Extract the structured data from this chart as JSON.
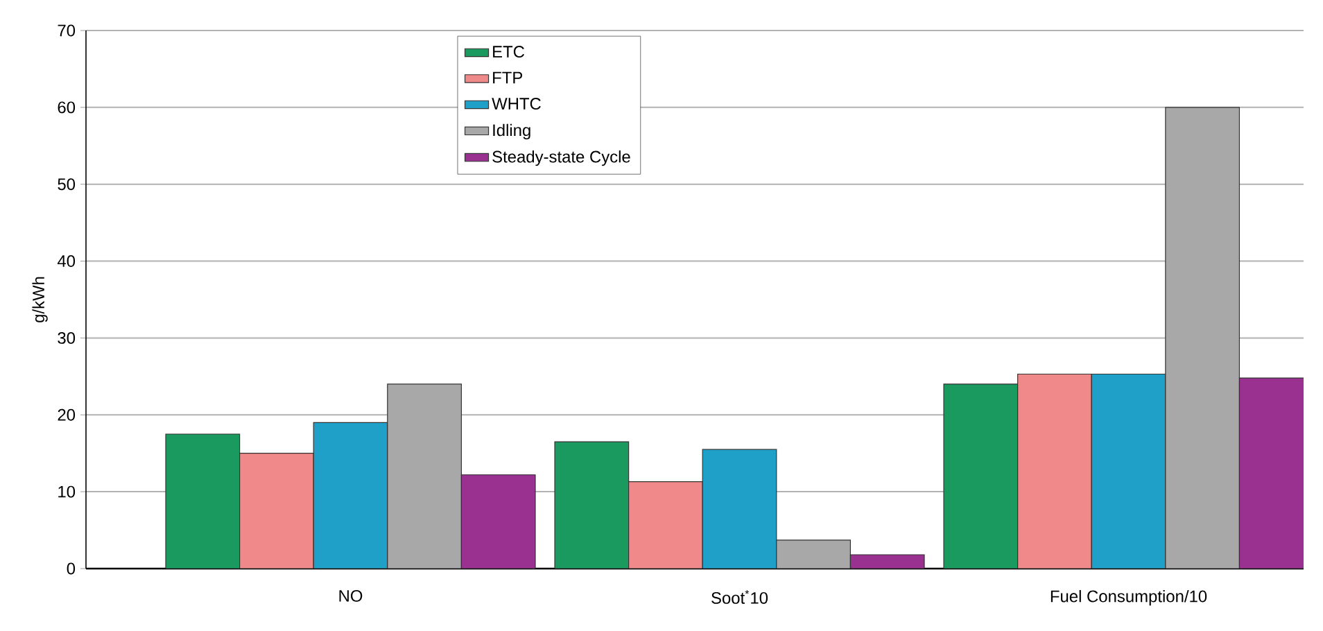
{
  "chart_data": {
    "type": "bar",
    "ylabel": "g/kWh",
    "categories": [
      "NO",
      "Soot$^{*}$10",
      "Fuel Consumption/10"
    ],
    "series": [
      {
        "name": "ETC",
        "color": "#1a9a5e",
        "values": [
          17.5,
          16.5,
          24
        ]
      },
      {
        "name": "FTP",
        "color": "#f08a8a",
        "values": [
          15,
          11.3,
          25.3
        ]
      },
      {
        "name": "WHTC",
        "color": "#1fa0c8",
        "values": [
          19,
          15.5,
          25.3
        ]
      },
      {
        "name": "Idling",
        "color": "#a8a8a8",
        "values": [
          24,
          3.7,
          60
        ]
      },
      {
        "name": "Steady-state Cycle",
        "color": "#9a3090",
        "values": [
          12.2,
          1.8,
          24.8
        ]
      }
    ],
    "ylim": [
      0,
      70
    ],
    "yticks": [
      0,
      10,
      20,
      30,
      40,
      50,
      60,
      70
    ],
    "grid": "y",
    "legend": "top"
  }
}
